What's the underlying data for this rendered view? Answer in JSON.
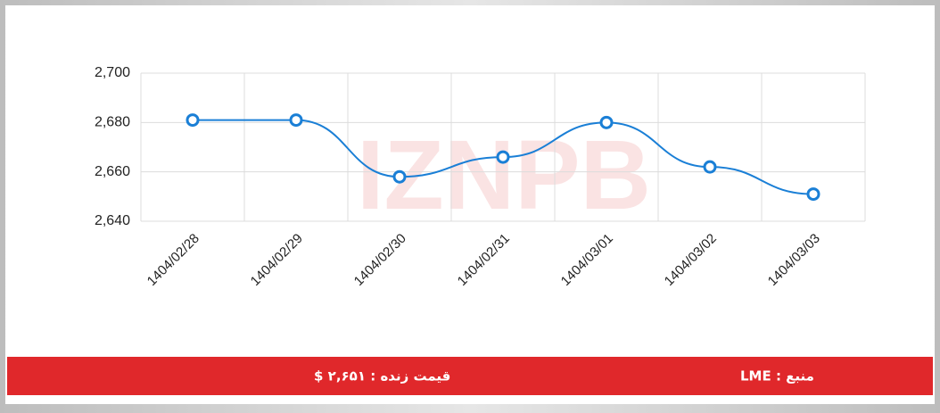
{
  "watermark": "IZNPB",
  "chart_data": {
    "type": "line",
    "categories": [
      "1404/02/28",
      "1404/02/29",
      "1404/02/30",
      "1404/02/31",
      "1404/03/01",
      "1404/03/02",
      "1404/03/03"
    ],
    "series": [
      {
        "name": "LME",
        "color": "#1a7fd6",
        "values": [
          2681,
          2681,
          2658,
          2666,
          2680,
          2662,
          2651
        ]
      }
    ],
    "ylim": [
      2640,
      2700
    ],
    "yticks": [
      {
        "value": 2640,
        "label": "2,640"
      },
      {
        "value": 2660,
        "label": "2,660"
      },
      {
        "value": 2680,
        "label": "2,680"
      },
      {
        "value": 2700,
        "label": "2,700"
      }
    ],
    "grid": true
  },
  "footer": {
    "live_price": "قیمت زنده : ۲,۶۵۱ $",
    "source": "منبع : LME"
  }
}
